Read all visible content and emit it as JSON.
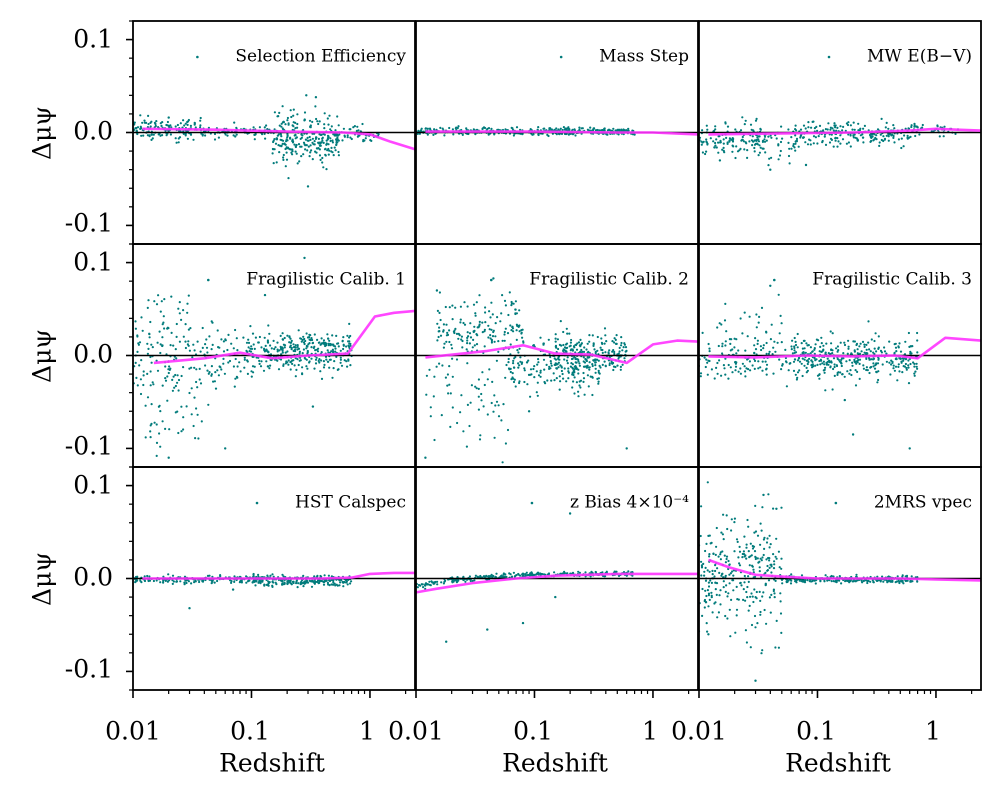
{
  "figure": {
    "y_axis_label": "Δμψ",
    "x_axis_label": "Redshift",
    "x_tick_labels": [
      "0.01",
      "0.1",
      "1"
    ],
    "y_tick_labels": [
      "0.1",
      "0.0",
      "-0.1"
    ],
    "colors": {
      "points": "#007b7b",
      "line": "#ff33ff",
      "axis": "#000000",
      "background": "#ffffff"
    }
  },
  "chart_data": [
    {
      "type": "scatter",
      "title": "Selection Efficiency",
      "legend": "Selection Efficiency",
      "xscale": "log",
      "xlim": [
        0.01,
        2.4
      ],
      "ylim": [
        -0.12,
        0.12
      ],
      "xlabel": "",
      "ylabel": "Δμψ",
      "series": [
        {
          "name": "points",
          "pattern": [
            {
              "z0": 0.01,
              "z1": 0.04,
              "n": 150,
              "mean": 0.004,
              "sd": 0.005
            },
            {
              "z0": 0.04,
              "z1": 0.15,
              "n": 80,
              "mean": 0.001,
              "sd": 0.003
            },
            {
              "z0": 0.15,
              "z1": 0.55,
              "n": 270,
              "mean": -0.008,
              "sd": 0.013
            },
            {
              "z0": 0.55,
              "z1": 1.2,
              "n": 50,
              "mean": -0.003,
              "sd": 0.005
            }
          ],
          "outliers": [
            [
              0.29,
              0.04
            ],
            [
              0.35,
              0.038
            ],
            [
              0.3,
              -0.058
            ],
            [
              0.02,
              0.016
            ]
          ]
        },
        {
          "name": "binned mean",
          "x": [
            0.012,
            0.05,
            0.2,
            0.6,
            1.0,
            1.5,
            2.4
          ],
          "y": [
            0.004,
            0.003,
            0.001,
            0.0,
            -0.002,
            -0.01,
            -0.018
          ]
        }
      ]
    },
    {
      "type": "scatter",
      "title": "Mass Step",
      "legend": "Mass Step",
      "xscale": "log",
      "xlim": [
        0.01,
        2.4
      ],
      "ylim": [
        -0.12,
        0.12
      ],
      "xlabel": "",
      "ylabel": "",
      "series": [
        {
          "name": "points",
          "pattern": [
            {
              "z0": 0.01,
              "z1": 0.08,
              "n": 180,
              "mean": 0.001,
              "sd": 0.002
            },
            {
              "z0": 0.09,
              "z1": 0.7,
              "n": 230,
              "mean": 0.001,
              "sd": 0.002
            }
          ],
          "outliers": []
        },
        {
          "name": "binned mean",
          "x": [
            0.012,
            0.1,
            0.5,
            1.0,
            2.4
          ],
          "y": [
            0.001,
            0.001,
            0.0,
            0.0,
            -0.002
          ]
        }
      ]
    },
    {
      "type": "scatter",
      "title": "MW E(B−V)",
      "legend": "MW E(B−V)",
      "xscale": "log",
      "xlim": [
        0.01,
        2.4
      ],
      "ylim": [
        -0.12,
        0.12
      ],
      "xlabel": "",
      "ylabel": "",
      "series": [
        {
          "name": "points",
          "pattern": [
            {
              "z0": 0.01,
              "z1": 0.07,
              "n": 180,
              "mean": -0.008,
              "sd": 0.01
            },
            {
              "z0": 0.07,
              "z1": 0.7,
              "n": 220,
              "mean": -0.002,
              "sd": 0.006
            },
            {
              "z0": 0.7,
              "z1": 1.6,
              "n": 30,
              "mean": 0.003,
              "sd": 0.003
            }
          ],
          "outliers": [
            [
              0.04,
              -0.04
            ],
            [
              0.08,
              -0.035
            ],
            [
              0.015,
              -0.03
            ]
          ]
        },
        {
          "name": "binned mean",
          "x": [
            0.012,
            0.05,
            0.2,
            0.6,
            1.0,
            1.5,
            2.4
          ],
          "y": [
            -0.002,
            -0.001,
            0.0,
            0.002,
            0.004,
            0.003,
            0.002
          ]
        }
      ]
    },
    {
      "type": "scatter",
      "title": "Fragilistic Calib. 1",
      "legend": "Fragilistic Calib. 1",
      "xscale": "log",
      "xlim": [
        0.01,
        2.4
      ],
      "ylim": [
        -0.12,
        0.12
      ],
      "xlabel": "",
      "ylabel": "Δμψ",
      "series": [
        {
          "name": "points",
          "pattern": [
            {
              "z0": 0.01,
              "z1": 0.09,
              "n": 180,
              "mean": 0.0,
              "sd": 0.02
            },
            {
              "z0": 0.012,
              "z1": 0.04,
              "n": 40,
              "mean": -0.07,
              "sd": 0.025
            },
            {
              "z0": 0.012,
              "z1": 0.03,
              "n": 25,
              "mean": 0.045,
              "sd": 0.015
            },
            {
              "z0": 0.09,
              "z1": 0.7,
              "n": 350,
              "mean": 0.004,
              "sd": 0.011
            }
          ],
          "outliers": [
            [
              0.28,
              0.105
            ],
            [
              0.13,
              0.065
            ],
            [
              0.06,
              -0.1
            ],
            [
              0.33,
              -0.055
            ],
            [
              0.02,
              -0.11
            ]
          ]
        },
        {
          "name": "binned mean",
          "x": [
            0.015,
            0.04,
            0.08,
            0.15,
            0.3,
            0.65,
            1.1,
            1.6,
            2.4
          ],
          "y": [
            -0.008,
            -0.003,
            0.003,
            -0.003,
            0.0,
            0.002,
            0.042,
            0.046,
            0.048
          ]
        }
      ]
    },
    {
      "type": "scatter",
      "title": "Fragilistic Calib. 2",
      "legend": "Fragilistic Calib. 2",
      "xscale": "log",
      "xlim": [
        0.01,
        2.4
      ],
      "ylim": [
        -0.12,
        0.12
      ],
      "xlabel": "",
      "ylabel": "",
      "series": [
        {
          "name": "points",
          "pattern": [
            {
              "z0": 0.015,
              "z1": 0.08,
              "n": 160,
              "mean": 0.03,
              "sd": 0.015
            },
            {
              "z0": 0.012,
              "z1": 0.06,
              "n": 70,
              "mean": -0.045,
              "sd": 0.035
            },
            {
              "z0": 0.06,
              "z1": 0.35,
              "n": 200,
              "mean": -0.01,
              "sd": 0.013
            },
            {
              "z0": 0.15,
              "z1": 0.6,
              "n": 200,
              "mean": 0.003,
              "sd": 0.01
            }
          ],
          "outliers": [
            [
              0.045,
              0.083
            ],
            [
              0.015,
              0.07
            ],
            [
              0.6,
              -0.1
            ],
            [
              0.012,
              -0.11
            ],
            [
              0.09,
              -0.06
            ]
          ]
        },
        {
          "name": "binned mean",
          "x": [
            0.012,
            0.04,
            0.08,
            0.15,
            0.3,
            0.6,
            1.0,
            1.6,
            2.4
          ],
          "y": [
            -0.002,
            0.005,
            0.011,
            0.002,
            0.001,
            -0.008,
            0.012,
            0.016,
            0.015
          ]
        }
      ]
    },
    {
      "type": "scatter",
      "title": "Fragilistic Calib. 3",
      "legend": "Fragilistic Calib. 3",
      "xscale": "log",
      "xlim": [
        0.01,
        2.4
      ],
      "ylim": [
        -0.12,
        0.12
      ],
      "xlabel": "",
      "ylabel": "",
      "series": [
        {
          "name": "points",
          "pattern": [
            {
              "z0": 0.01,
              "z1": 0.06,
              "n": 120,
              "mean": -0.005,
              "sd": 0.012
            },
            {
              "z0": 0.012,
              "z1": 0.05,
              "n": 30,
              "mean": 0.03,
              "sd": 0.015
            },
            {
              "z0": 0.06,
              "z1": 0.7,
              "n": 400,
              "mean": -0.002,
              "sd": 0.011
            }
          ],
          "outliers": [
            [
              0.2,
              -0.085
            ],
            [
              0.6,
              -0.1
            ],
            [
              0.04,
              0.075
            ],
            [
              0.17,
              -0.048
            ]
          ]
        },
        {
          "name": "binned mean",
          "x": [
            0.012,
            0.03,
            0.08,
            0.2,
            0.45,
            0.7,
            1.2,
            2.4
          ],
          "y": [
            -0.001,
            -0.002,
            0.0,
            -0.001,
            0.0,
            -0.003,
            0.019,
            0.016
          ]
        }
      ]
    },
    {
      "type": "scatter",
      "title": "HST Calspec",
      "legend": "HST Calspec",
      "xscale": "log",
      "xlim": [
        0.01,
        2.4
      ],
      "ylim": [
        -0.12,
        0.12
      ],
      "xlabel": "Redshift",
      "ylabel": "Δμψ",
      "series": [
        {
          "name": "points",
          "pattern": [
            {
              "z0": 0.01,
              "z1": 0.1,
              "n": 160,
              "mean": -0.001,
              "sd": 0.002
            },
            {
              "z0": 0.1,
              "z1": 0.7,
              "n": 260,
              "mean": -0.002,
              "sd": 0.003
            }
          ],
          "outliers": [
            [
              0.03,
              -0.032
            ],
            [
              0.07,
              -0.012
            ]
          ]
        },
        {
          "name": "binned mean",
          "x": [
            0.012,
            0.05,
            0.15,
            0.4,
            0.7,
            1.0,
            1.6,
            2.4
          ],
          "y": [
            0.0,
            0.0,
            0.0,
            0.0,
            0.001,
            0.005,
            0.006,
            0.006
          ]
        }
      ]
    },
    {
      "type": "scatter",
      "title": "z Bias 4×10⁻⁴",
      "legend": "z Bias 4×10⁻⁴",
      "xscale": "log",
      "xlim": [
        0.01,
        2.4
      ],
      "ylim": [
        -0.12,
        0.12
      ],
      "xlabel": "Redshift",
      "ylabel": "",
      "series": [
        {
          "name": "points",
          "pattern": [
            {
              "z0": 0.01,
              "z1": 0.7,
              "n": 320,
              "mean": 0.0,
              "sd": 0.0015,
              "trend": "bias"
            }
          ],
          "outliers": [
            [
              0.018,
              -0.068
            ],
            [
              0.04,
              -0.055
            ],
            [
              0.08,
              -0.048
            ],
            [
              0.2,
              0.07
            ],
            [
              0.15,
              -0.02
            ]
          ]
        },
        {
          "name": "binned mean",
          "x": [
            0.01,
            0.015,
            0.03,
            0.07,
            0.15,
            0.5,
            1.0,
            2.4
          ],
          "y": [
            -0.015,
            -0.011,
            -0.005,
            0.0,
            0.003,
            0.005,
            0.005,
            0.005
          ]
        }
      ]
    },
    {
      "type": "scatter",
      "title": "2MRS vpec",
      "legend": "2MRS vpec",
      "xscale": "log",
      "xlim": [
        0.01,
        2.4
      ],
      "ylim": [
        -0.12,
        0.12
      ],
      "xlabel": "Redshift",
      "ylabel": "",
      "series": [
        {
          "name": "points",
          "pattern": [
            {
              "z0": 0.01,
              "z1": 0.05,
              "n": 300,
              "mean": 0.005,
              "sd": 0.03
            },
            {
              "z0": 0.05,
              "z1": 0.7,
              "n": 260,
              "mean": -0.001,
              "sd": 0.002
            }
          ],
          "outliers": [
            [
              0.03,
              -0.11
            ],
            [
              0.035,
              0.09
            ],
            [
              0.012,
              -0.06
            ],
            [
              0.045,
              0.075
            ]
          ]
        },
        {
          "name": "binned mean",
          "x": [
            0.012,
            0.018,
            0.03,
            0.05,
            0.1,
            0.5,
            1.0,
            2.4
          ],
          "y": [
            0.02,
            0.012,
            0.004,
            0.002,
            0.0,
            0.0,
            -0.001,
            -0.002
          ]
        }
      ]
    }
  ]
}
